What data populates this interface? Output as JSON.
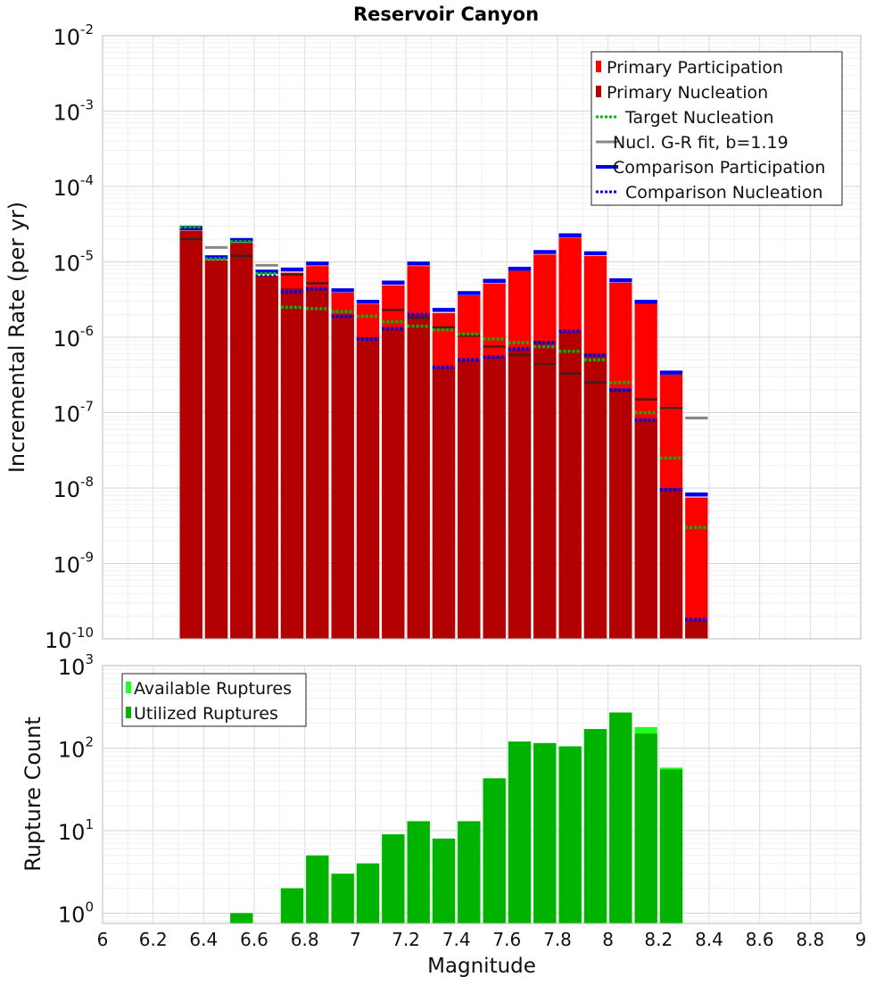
{
  "chart_data": [
    {
      "type": "bar",
      "title": "Reservoir Canyon",
      "xlabel": "",
      "ylabel": "Incremental Rate (per yr)",
      "xlim": [
        6,
        9
      ],
      "ylim": [
        1e-10,
        0.01
      ],
      "yscale": "log",
      "grid": true,
      "legend_position": "top-right",
      "y_tick_labels": [
        {
          "base": "10",
          "exp": "-10"
        },
        {
          "base": "10",
          "exp": "-9"
        },
        {
          "base": "10",
          "exp": "-8"
        },
        {
          "base": "10",
          "exp": "-7"
        },
        {
          "base": "10",
          "exp": "-6"
        },
        {
          "base": "10",
          "exp": "-5"
        },
        {
          "base": "10",
          "exp": "-4"
        },
        {
          "base": "10",
          "exp": "-3"
        },
        {
          "base": "10",
          "exp": "-2"
        }
      ],
      "bin_width": 0.1,
      "x": [
        6.35,
        6.45,
        6.55,
        6.65,
        6.75,
        6.85,
        6.95,
        7.05,
        7.15,
        7.25,
        7.35,
        7.45,
        7.55,
        7.65,
        7.75,
        7.85,
        7.95,
        8.05,
        8.15,
        8.25,
        8.35
      ],
      "series": [
        {
          "name": "Primary Participation",
          "color": "#ff0000",
          "style": "bar",
          "values": [
            2.6e-05,
            1.05e-05,
            1.8e-05,
            6.5e-06,
            7.2e-06,
            8.8e-06,
            3.9e-06,
            2.75e-06,
            4.9e-06,
            8.8e-06,
            2.1e-06,
            3.6e-06,
            5.2e-06,
            7.6e-06,
            1.25e-05,
            2.1e-05,
            1.2e-05,
            5.3e-06,
            2.8e-06,
            3.2e-07,
            7.5e-09
          ]
        },
        {
          "name": "Primary Nucleation",
          "color": "#b30000",
          "style": "bar",
          "values": [
            2.6e-05,
            1.05e-05,
            1.8e-05,
            6.5e-06,
            4.5e-06,
            4.5e-06,
            2e-06,
            1e-06,
            1.3e-06,
            2e-06,
            4e-07,
            5e-07,
            5.5e-07,
            7e-07,
            9e-07,
            1.2e-06,
            6e-07,
            2e-07,
            8e-08,
            1e-08,
            1.8e-10
          ]
        },
        {
          "name": "Target Nucleation",
          "color": "#00bb00",
          "style": "dotted-step",
          "values": [
            2.9e-05,
            1.1e-05,
            1.85e-05,
            7e-06,
            2.5e-06,
            2.4e-06,
            2.2e-06,
            1.9e-06,
            1.6e-06,
            1.4e-06,
            1.25e-06,
            1.1e-06,
            9.5e-07,
            8.5e-07,
            7.5e-07,
            6.5e-07,
            5e-07,
            2.5e-07,
            1e-07,
            2.5e-08,
            3e-09
          ]
        },
        {
          "name": "Nucl. G-R fit, b=1.19",
          "color": "#888888",
          "style": "dash",
          "values": [
            2.9e-05,
            1.55e-05,
            null,
            9e-06,
            null,
            null,
            null,
            null,
            null,
            null,
            null,
            null,
            null,
            null,
            null,
            null,
            null,
            null,
            null,
            1.15e-07,
            8.5e-08
          ],
          "dark_values": [
            2e-05,
            null,
            1.2e-05,
            null,
            6.8e-06,
            5.2e-06,
            null,
            null,
            2.3e-06,
            1.8e-06,
            1.35e-06,
            1.05e-06,
            7.5e-07,
            5.8e-07,
            4.4e-07,
            3.3e-07,
            2.5e-07,
            2e-07,
            1.5e-07,
            1.15e-07,
            null
          ]
        },
        {
          "name": "Comparison Participation",
          "color": "#0000ee",
          "style": "solid-step",
          "values": [
            2.8e-05,
            1.15e-05,
            1.95e-05,
            7.4e-06,
            7.9e-06,
            9.5e-06,
            4.2e-06,
            2.95e-06,
            5.3e-06,
            9.5e-06,
            2.3e-06,
            3.85e-06,
            5.6e-06,
            8.1e-06,
            1.35e-05,
            2.25e-05,
            1.3e-05,
            5.7e-06,
            2.95e-06,
            3.4e-07,
            8.2e-09
          ]
        },
        {
          "name": "Comparison Nucleation",
          "color": "#0000ee",
          "style": "dotted-step",
          "values": [
            2.8e-05,
            1.15e-05,
            1.95e-05,
            6.7e-06,
            4e-06,
            4.4e-06,
            1.9e-06,
            9.5e-07,
            1.3e-06,
            2e-06,
            4e-07,
            5e-07,
            5.5e-07,
            7e-07,
            8.5e-07,
            1.2e-06,
            5.8e-07,
            2e-07,
            8e-08,
            9.5e-09,
            1.8e-10
          ]
        }
      ]
    },
    {
      "type": "bar",
      "title": "",
      "xlabel": "Magnitude",
      "ylabel": "Rupture Count",
      "xlim": [
        6,
        9
      ],
      "ylim": [
        0.75,
        1000
      ],
      "yscale": "log",
      "grid": true,
      "legend_position": "top-left",
      "x_tick_labels": [
        "6",
        "6.2",
        "6.4",
        "6.6",
        "6.8",
        "7",
        "7.2",
        "7.4",
        "7.6",
        "7.8",
        "8",
        "8.2",
        "8.4",
        "8.6",
        "8.8",
        "9"
      ],
      "y_tick_labels": [
        {
          "base": "10",
          "exp": "0"
        },
        {
          "base": "10",
          "exp": "1"
        },
        {
          "base": "10",
          "exp": "2"
        },
        {
          "base": "10",
          "exp": "3"
        }
      ],
      "bin_width": 0.1,
      "x": [
        6.55,
        6.75,
        6.85,
        6.95,
        7.05,
        7.15,
        7.25,
        7.35,
        7.45,
        7.55,
        7.65,
        7.75,
        7.85,
        7.95,
        8.05,
        8.15,
        8.25
      ],
      "series": [
        {
          "name": "Available Ruptures",
          "color": "#22ff22",
          "values": [
            1,
            2,
            5,
            3,
            4,
            9,
            13,
            8,
            13,
            43,
            120,
            115,
            105,
            170,
            270,
            180,
            58
          ]
        },
        {
          "name": "Utilized Ruptures",
          "color": "#00b300",
          "values": [
            1,
            2,
            5,
            3,
            4,
            9,
            13,
            8,
            13,
            43,
            120,
            115,
            105,
            170,
            270,
            150,
            55
          ]
        }
      ]
    }
  ]
}
